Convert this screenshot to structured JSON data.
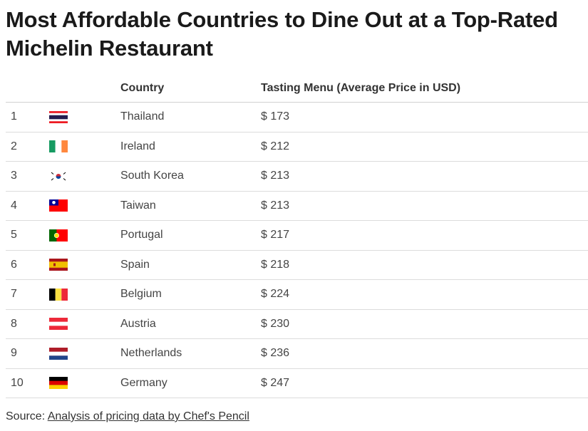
{
  "title": "Most Affordable Countries to Dine Out at a Top-Rated Michelin Restaurant",
  "headers": {
    "rank": "",
    "flag": "",
    "country": "Country",
    "price": "Tasting Menu (Average Price in USD)"
  },
  "rows": [
    {
      "rank": "1",
      "flag": "thailand-flag-icon",
      "country": "Thailand",
      "price": "$ 173"
    },
    {
      "rank": "2",
      "flag": "ireland-flag-icon",
      "country": "Ireland",
      "price": "$ 212"
    },
    {
      "rank": "3",
      "flag": "south-korea-flag-icon",
      "country": "South Korea",
      "price": "$ 213"
    },
    {
      "rank": "4",
      "flag": "taiwan-flag-icon",
      "country": "Taiwan",
      "price": "$ 213"
    },
    {
      "rank": "5",
      "flag": "portugal-flag-icon",
      "country": "Portugal",
      "price": "$ 217"
    },
    {
      "rank": "6",
      "flag": "spain-flag-icon",
      "country": "Spain",
      "price": "$ 218"
    },
    {
      "rank": "7",
      "flag": "belgium-flag-icon",
      "country": "Belgium",
      "price": "$ 224"
    },
    {
      "rank": "8",
      "flag": "austria-flag-icon",
      "country": "Austria",
      "price": "$ 230"
    },
    {
      "rank": "9",
      "flag": "netherlands-flag-icon",
      "country": "Netherlands",
      "price": "$ 236"
    },
    {
      "rank": "10",
      "flag": "germany-flag-icon",
      "country": "Germany",
      "price": "$ 247"
    }
  ],
  "source": {
    "label": "Source:",
    "link": "Analysis of pricing data by Chef's Pencil"
  },
  "chart_data": {
    "type": "table",
    "title": "Most Affordable Countries to Dine Out at a Top-Rated Michelin Restaurant",
    "columns": [
      "",
      "",
      "Country",
      "Tasting Menu (Average Price in USD)"
    ],
    "categories": [
      "Thailand",
      "Ireland",
      "South Korea",
      "Taiwan",
      "Portugal",
      "Spain",
      "Belgium",
      "Austria",
      "Netherlands",
      "Germany"
    ],
    "values": [
      173,
      212,
      213,
      213,
      217,
      218,
      224,
      230,
      236,
      247
    ]
  }
}
